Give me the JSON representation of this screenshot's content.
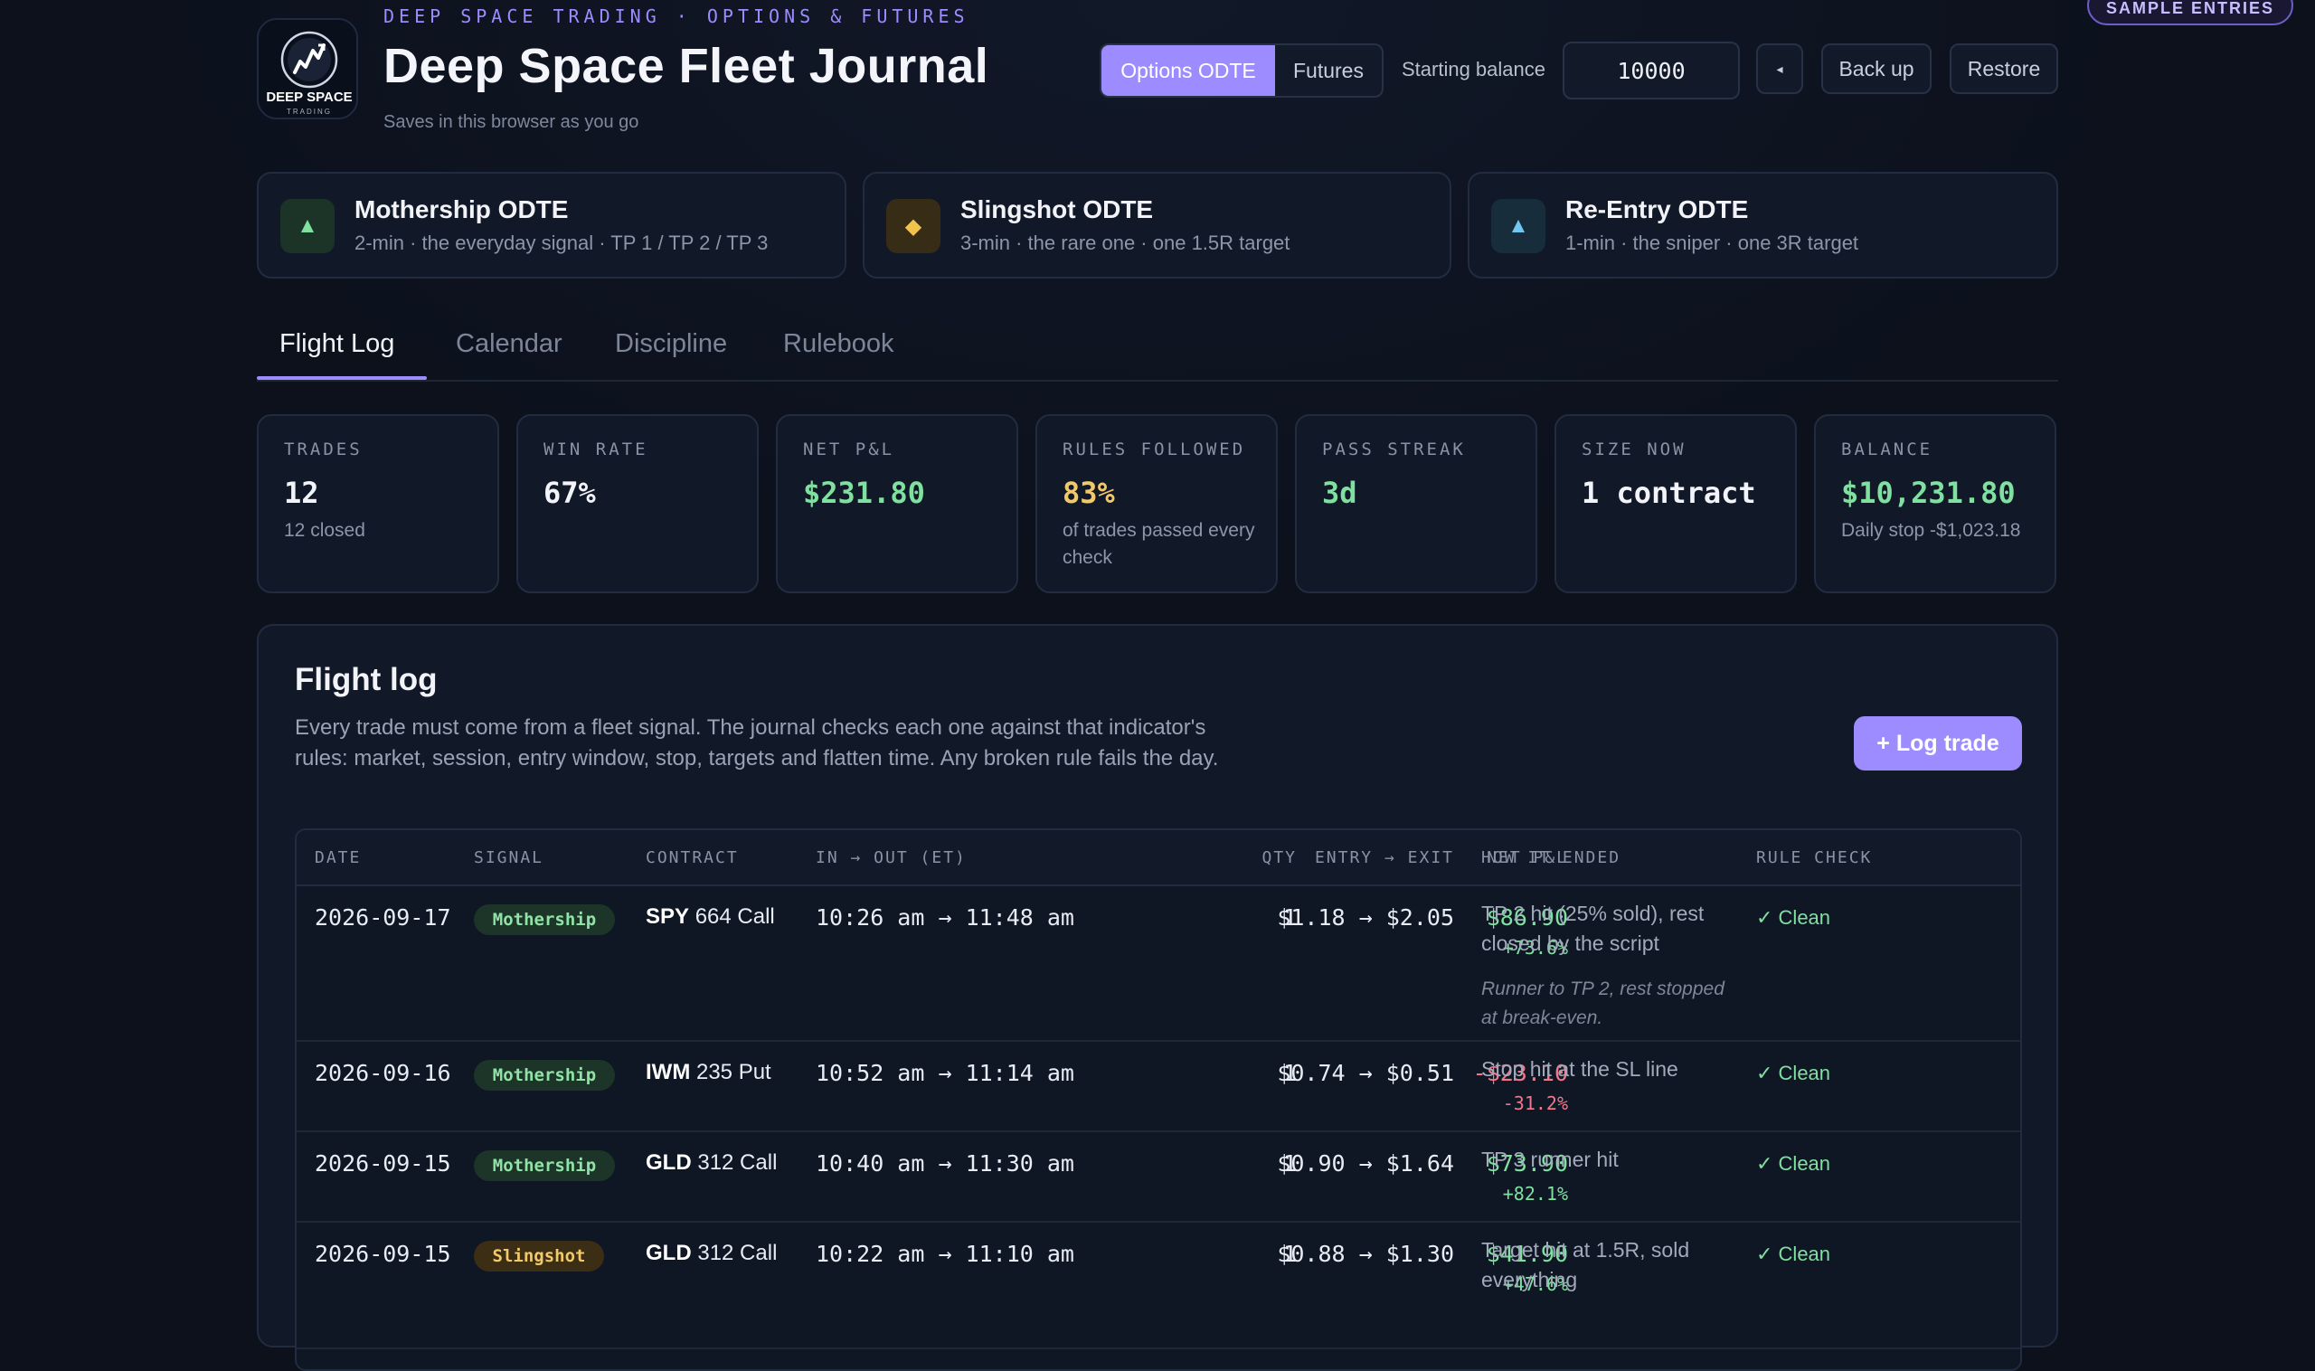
{
  "badge": "SAMPLE ENTRIES",
  "header": {
    "eyebrow": "DEEP SPACE TRADING · OPTIONS & FUTURES",
    "title": "Deep Space Fleet Journal",
    "subtitle": "Saves in this browser as you go",
    "logo_text": "DEEP SPACE",
    "logo_sub": "TRADING",
    "modes": [
      "Options ODTE",
      "Futures"
    ],
    "active_mode": "Options ODTE",
    "balance_label": "Starting balance",
    "balance_value": "10000",
    "collapse_icon": "chevron-left-icon",
    "backup_label": "Back up",
    "restore_label": "Restore"
  },
  "signals": [
    {
      "title": "Mothership ODTE",
      "desc": "2-min · the everyday signal · TP 1 / TP 2 / TP 3",
      "icon": "triangle-up-icon",
      "glyph": "▲",
      "color": "#7fe0a0",
      "bg": "#1c3328"
    },
    {
      "title": "Slingshot ODTE",
      "desc": "3-min · the rare one · one 1.5R target",
      "icon": "diamond-icon",
      "glyph": "◆",
      "color": "#f2c24e",
      "bg": "#372c15"
    },
    {
      "title": "Re-Entry ODTE",
      "desc": "1-min · the sniper · one 3R target",
      "icon": "triangle-up-icon",
      "glyph": "▲",
      "color": "#72c6f0",
      "bg": "#172d3b"
    }
  ],
  "tabs": [
    "Flight Log",
    "Calendar",
    "Discipline",
    "Rulebook"
  ],
  "active_tab": "Flight Log",
  "stats": [
    {
      "label": "TRADES",
      "value": "12",
      "sub": "12 closed",
      "color": "#f2f4f9"
    },
    {
      "label": "WIN RATE",
      "value": "67%",
      "sub": "",
      "color": "#f2f4f9"
    },
    {
      "label": "NET P&L",
      "value": "$231.80",
      "sub": "",
      "color": "#7fe0a0"
    },
    {
      "label": "RULES FOLLOWED",
      "value": "83%",
      "sub": "of trades passed every check",
      "color": "#f2c96a"
    },
    {
      "label": "PASS STREAK",
      "value": "3d",
      "sub": "",
      "color": "#7fe0a0"
    },
    {
      "label": "SIZE NOW",
      "value": "1 contract",
      "sub": "",
      "color": "#f2f4f9"
    },
    {
      "label": "BALANCE",
      "value": "$10,231.80",
      "sub": "Daily stop -$1,023.18",
      "color": "#7fe0a0"
    }
  ],
  "flight_log": {
    "title": "Flight log",
    "description": "Every trade must come from a fleet signal. The journal checks each one against that indicator's rules: market, session, entry window, stop, targets and flatten time. Any broken rule fails the day.",
    "log_button": "+ Log trade",
    "columns": [
      "DATE",
      "SIGNAL",
      "CONTRACT",
      "IN → OUT (ET)",
      "QTY",
      "ENTRY → EXIT",
      "NET P&L",
      "HOW IT ENDED",
      "RULE CHECK"
    ],
    "rows": [
      {
        "date": "2026-09-17",
        "signal": "Mothership",
        "ticker": "SPY",
        "contract": "664 Call",
        "time": "10:26 am → 11:48 am",
        "qty": "1",
        "prices": "$1.18 → $2.05",
        "pnl": "$86.90",
        "pct": "+73.6%",
        "ended": "TP 2 hit (25% sold), rest closed by the script",
        "note": "Runner to TP 2, rest stopped at break-even.",
        "check": "✓ Clean"
      },
      {
        "date": "2026-09-16",
        "signal": "Mothership",
        "ticker": "IWM",
        "contract": "235 Put",
        "time": "10:52 am → 11:14 am",
        "qty": "1",
        "prices": "$0.74 → $0.51",
        "pnl": "-$23.10",
        "pct": "-31.2%",
        "ended": "Stop hit at the SL line",
        "note": "",
        "check": "✓ Clean"
      },
      {
        "date": "2026-09-15",
        "signal": "Mothership",
        "ticker": "GLD",
        "contract": "312 Call",
        "time": "10:40 am → 11:30 am",
        "qty": "1",
        "prices": "$0.90 → $1.64",
        "pnl": "$73.90",
        "pct": "+82.1%",
        "ended": "TP 3 runner hit",
        "note": "",
        "check": "✓ Clean"
      },
      {
        "date": "2026-09-15",
        "signal": "Slingshot",
        "ticker": "GLD",
        "contract": "312 Call",
        "time": "10:22 am → 11:10 am",
        "qty": "1",
        "prices": "$0.88 → $1.30",
        "pnl": "$41.90",
        "pct": "+47.6%",
        "ended": "Target hit at 1.5R, sold everything",
        "note": "",
        "check": "✓ Clean"
      }
    ]
  }
}
